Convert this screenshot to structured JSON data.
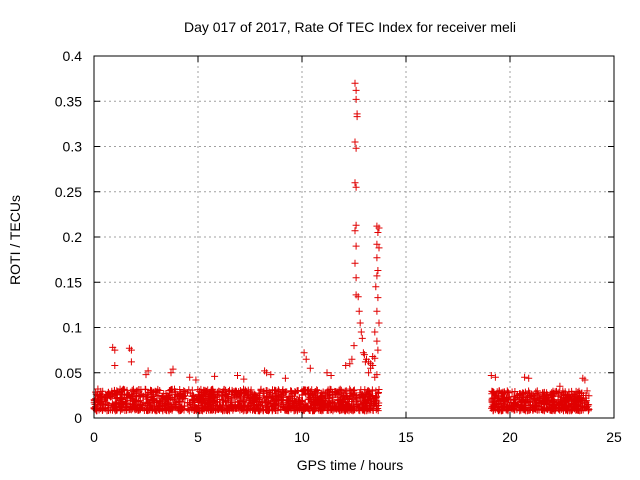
{
  "chart_data": {
    "type": "scatter",
    "title": "Day 017 of 2017, Rate Of TEC Index for receiver meli",
    "xlabel": "GPS time / hours",
    "ylabel": "ROTI / TECUs",
    "xlim": [
      0,
      25
    ],
    "ylim": [
      0,
      0.4
    ],
    "xticks": [
      0,
      5,
      10,
      15,
      20,
      25
    ],
    "yticks": [
      0,
      0.05,
      0.1,
      0.15,
      0.2,
      0.25,
      0.3,
      0.35,
      0.4
    ],
    "xtick_labels": [
      "0",
      "5",
      "10",
      "15",
      "20",
      "25"
    ],
    "ytick_labels": [
      "0",
      "0.05",
      "0.1",
      "0.15",
      "0.2",
      "0.25",
      "0.3",
      "0.35",
      "0.4"
    ],
    "grid": true,
    "marker": "+",
    "marker_color": "#e00000",
    "series": [
      {
        "name": "ROTI",
        "points": [
          [
            0.9,
            0.078
          ],
          [
            1.0,
            0.075
          ],
          [
            1.0,
            0.058
          ],
          [
            1.7,
            0.077
          ],
          [
            1.8,
            0.075
          ],
          [
            1.8,
            0.062
          ],
          [
            2.5,
            0.048
          ],
          [
            2.6,
            0.052
          ],
          [
            3.7,
            0.05
          ],
          [
            3.8,
            0.054
          ],
          [
            4.6,
            0.045
          ],
          [
            4.9,
            0.042
          ],
          [
            5.8,
            0.046
          ],
          [
            6.9,
            0.047
          ],
          [
            7.2,
            0.043
          ],
          [
            8.2,
            0.052
          ],
          [
            8.3,
            0.05
          ],
          [
            8.5,
            0.048
          ],
          [
            9.2,
            0.044
          ],
          [
            10.1,
            0.072
          ],
          [
            10.2,
            0.065
          ],
          [
            10.4,
            0.055
          ],
          [
            11.2,
            0.05
          ],
          [
            11.4,
            0.047
          ],
          [
            12.1,
            0.058
          ],
          [
            12.3,
            0.06
          ],
          [
            12.4,
            0.065
          ],
          [
            12.5,
            0.08
          ],
          [
            12.55,
            0.37
          ],
          [
            12.6,
            0.362
          ],
          [
            12.6,
            0.352
          ],
          [
            12.65,
            0.336
          ],
          [
            12.65,
            0.333
          ],
          [
            12.55,
            0.305
          ],
          [
            12.6,
            0.298
          ],
          [
            12.55,
            0.26
          ],
          [
            12.6,
            0.255
          ],
          [
            12.6,
            0.213
          ],
          [
            12.55,
            0.207
          ],
          [
            12.6,
            0.19
          ],
          [
            12.55,
            0.171
          ],
          [
            12.6,
            0.155
          ],
          [
            12.6,
            0.136
          ],
          [
            12.7,
            0.134
          ],
          [
            12.75,
            0.118
          ],
          [
            12.8,
            0.105
          ],
          [
            12.85,
            0.095
          ],
          [
            12.9,
            0.088
          ],
          [
            12.95,
            0.072
          ],
          [
            13.0,
            0.07
          ],
          [
            13.05,
            0.062
          ],
          [
            13.1,
            0.065
          ],
          [
            13.2,
            0.062
          ],
          [
            13.3,
            0.06
          ],
          [
            13.4,
            0.068
          ],
          [
            13.5,
            0.066
          ],
          [
            13.6,
            0.212
          ],
          [
            13.7,
            0.21
          ],
          [
            13.65,
            0.205
          ],
          [
            13.6,
            0.192
          ],
          [
            13.7,
            0.188
          ],
          [
            13.6,
            0.177
          ],
          [
            13.65,
            0.163
          ],
          [
            13.6,
            0.157
          ],
          [
            13.55,
            0.145
          ],
          [
            13.65,
            0.133
          ],
          [
            13.6,
            0.118
          ],
          [
            13.7,
            0.105
          ],
          [
            13.5,
            0.095
          ],
          [
            13.6,
            0.085
          ],
          [
            13.65,
            0.075
          ],
          [
            13.4,
            0.058
          ],
          [
            13.3,
            0.055
          ],
          [
            13.2,
            0.05
          ],
          [
            13.6,
            0.048
          ],
          [
            13.5,
            0.045
          ],
          [
            19.1,
            0.047
          ],
          [
            19.3,
            0.045
          ],
          [
            20.7,
            0.045
          ],
          [
            20.9,
            0.044
          ],
          [
            22.4,
            0.035
          ],
          [
            23.5,
            0.044
          ],
          [
            23.6,
            0.042
          ]
        ]
      }
    ],
    "dense_bands": [
      {
        "x_start": 0.0,
        "x_end": 13.7,
        "y_min": 0.008,
        "y_max": 0.032,
        "count": 1400
      },
      {
        "x_start": 19.1,
        "x_end": 23.8,
        "y_min": 0.008,
        "y_max": 0.03,
        "count": 520
      }
    ]
  }
}
